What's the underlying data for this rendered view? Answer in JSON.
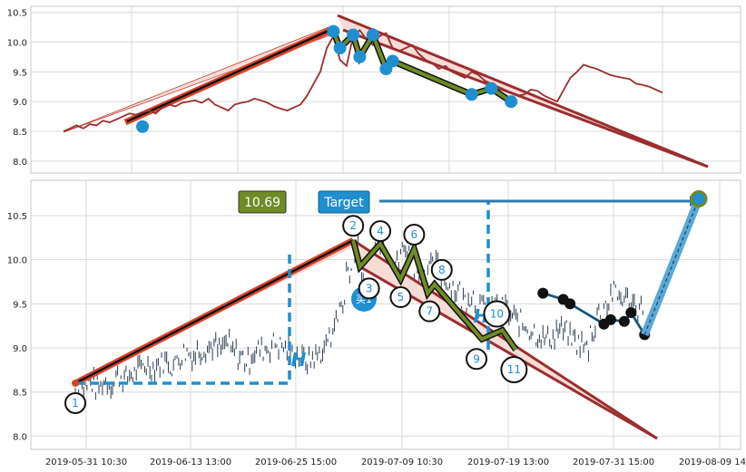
{
  "chart_data": [
    {
      "type": "line",
      "title": "",
      "ylim": [
        7.8,
        10.6
      ],
      "y_ticks": [
        "8.0",
        "8.5",
        "9.0",
        "9.5",
        "10.0",
        "10.5"
      ],
      "grid": true,
      "price_series": [
        8.5,
        8.55,
        8.6,
        8.55,
        8.62,
        8.6,
        8.68,
        8.65,
        8.7,
        8.75,
        8.8,
        8.78,
        8.82,
        8.85,
        8.8,
        8.9,
        8.95,
        8.92,
        8.98,
        9.0,
        9.02,
        8.98,
        9.05,
        8.95,
        8.9,
        8.85,
        8.95,
        8.98,
        9.0,
        9.05,
        9.02,
        8.98,
        8.92,
        8.88,
        8.85,
        8.9,
        8.95,
        9.1,
        9.3,
        9.5,
        9.9,
        10.1,
        9.7,
        9.6,
        10.1,
        10.2,
        10.05,
        9.95,
        10.1,
        10.15,
        9.9,
        9.85,
        9.9,
        9.95,
        9.8,
        9.7,
        9.65,
        9.55,
        9.6,
        9.5,
        9.45,
        9.4,
        9.5,
        9.45,
        9.35,
        9.3,
        9.25,
        9.2,
        9.15,
        9.1,
        9.12,
        9.2,
        9.18,
        9.1,
        9.05,
        9.0,
        9.2,
        9.4,
        9.5,
        9.62,
        9.58,
        9.55,
        9.5,
        9.45,
        9.42,
        9.4,
        9.38,
        9.3,
        9.28,
        9.25,
        9.2,
        9.15
      ],
      "markers": [
        [
          12,
          8.58
        ],
        [
          41,
          10.18
        ],
        [
          42,
          9.9
        ],
        [
          44,
          10.12
        ],
        [
          45,
          9.75
        ],
        [
          47,
          10.12
        ],
        [
          49,
          9.55
        ],
        [
          50,
          9.68
        ],
        [
          62,
          9.12
        ],
        [
          65,
          9.22
        ],
        [
          68,
          9.0
        ]
      ]
    },
    {
      "type": "line",
      "ylim": [
        7.85,
        10.9
      ],
      "y_ticks": [
        "8.0",
        "8.5",
        "9.0",
        "9.5",
        "10.0",
        "10.5"
      ],
      "x_ticks": [
        "2019-05-31 10:30",
        "2019-06-13 13:00",
        "2019-06-25 15:00",
        "2019-07-09 10:30",
        "2019-07-19 13:00",
        "2019-07-31 15:00",
        "2019-08-09 14:00"
      ],
      "grid": true,
      "price_label": "10.69",
      "target_label": "Target",
      "buy_label": "买1",
      "h_labels": [
        "H",
        "H",
        "H"
      ],
      "wave_points": [
        {
          "n": "1",
          "t": 0,
          "y": 8.6
        },
        {
          "n": "2",
          "t": 41,
          "y": 10.22
        },
        {
          "n": "3",
          "t": 42,
          "y": 9.92
        },
        {
          "n": "4",
          "t": 45,
          "y": 10.18
        },
        {
          "n": "5",
          "t": 48,
          "y": 9.78
        },
        {
          "n": "6",
          "t": 50,
          "y": 10.12
        },
        {
          "n": "7",
          "t": 52,
          "y": 9.62
        },
        {
          "n": "8",
          "t": 53,
          "y": 9.72
        },
        {
          "n": "9",
          "t": 60,
          "y": 9.1
        },
        {
          "n": "10",
          "t": 63,
          "y": 9.2
        },
        {
          "n": "11",
          "t": 65,
          "y": 8.98
        }
      ],
      "late_markers": [
        [
          69,
          9.62
        ],
        [
          72,
          9.55
        ],
        [
          73,
          9.5
        ],
        [
          78,
          9.27
        ],
        [
          79,
          9.32
        ],
        [
          81,
          9.3
        ],
        [
          82,
          9.4
        ],
        [
          84,
          9.15
        ]
      ],
      "target_value": 10.69
    }
  ]
}
